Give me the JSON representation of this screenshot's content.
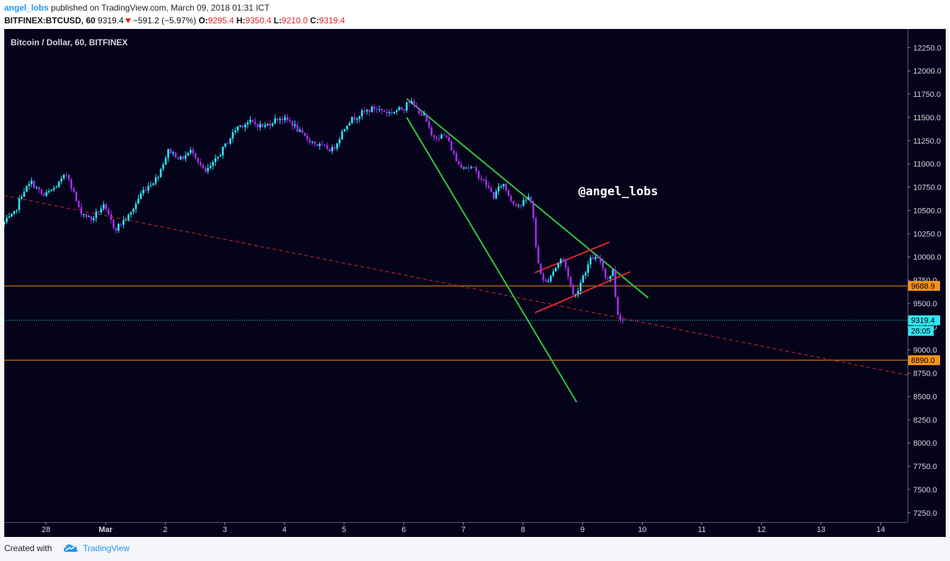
{
  "header": {
    "author": "angel_lobs",
    "published": "published on TradingView.com, March 09, 2018 01:31 ICT",
    "symbol": "BITFINEX:BTCUSD, 60",
    "last": "9319.4",
    "change": "−591.2 (−5.97%)",
    "o_label": "O:",
    "o_value": "9295.4",
    "h_label": "H:",
    "h_value": "9350.4",
    "l_label": "L:",
    "l_value": "9210.0",
    "c_label": "C:",
    "c_value": "9319.4"
  },
  "footer": {
    "created_with": "Created with",
    "brand": "TradingView"
  },
  "colors": {
    "bg": "#05031a",
    "up": "#2ee8f5",
    "down": "#a230e8",
    "green_line": "#2ecc40",
    "red_line": "#e02828",
    "orange": "#f7931a",
    "axis_text": "#d8d8e0"
  },
  "chart_data": {
    "type": "candlestick",
    "title": "Bitcoin / Dollar, 60, BITFINEX",
    "watermark": "@angel_lobs",
    "y_ticks": [
      7250,
      7500,
      7750,
      8000,
      8250,
      8500,
      8750,
      9000,
      9250,
      9500,
      9750,
      10000,
      10250,
      10500,
      10750,
      11000,
      11250,
      11500,
      11750,
      12000,
      12250
    ],
    "y_tick_labels": [
      "7250.0",
      "7500.0",
      "7750.0",
      "8000.0",
      "8250.0",
      "8500.0",
      "8750.0",
      "9000.0",
      "9250.0",
      "9500.0",
      "9750.0",
      "10000.0",
      "10250.0",
      "10500.0",
      "10750.0",
      "11000.0",
      "11250.0",
      "11500.0",
      "11750.0",
      "12000.0",
      "12250.0"
    ],
    "ylim": [
      7150,
      12450
    ],
    "x_ticks": [
      {
        "label": "28",
        "day": 0
      },
      {
        "label": "Mar",
        "day": 1
      },
      {
        "label": "2",
        "day": 2
      },
      {
        "label": "3",
        "day": 3
      },
      {
        "label": "4",
        "day": 4
      },
      {
        "label": "5",
        "day": 5
      },
      {
        "label": "6",
        "day": 6
      },
      {
        "label": "7",
        "day": 7
      },
      {
        "label": "8",
        "day": 8
      },
      {
        "label": "9",
        "day": 9
      },
      {
        "label": "10",
        "day": 10
      },
      {
        "label": "11",
        "day": 11
      },
      {
        "label": "12",
        "day": 12
      },
      {
        "label": "13",
        "day": 13
      },
      {
        "label": "14",
        "day": 14
      }
    ],
    "xlim": [
      -0.7,
      14.45
    ],
    "price_path": [
      [
        -0.7,
        10350
      ],
      [
        -0.5,
        10450
      ],
      [
        -0.35,
        10700
      ],
      [
        -0.2,
        10800
      ],
      [
        0.0,
        10650
      ],
      [
        0.2,
        10750
      ],
      [
        0.4,
        10900
      ],
      [
        0.6,
        10500
      ],
      [
        0.8,
        10400
      ],
      [
        1.0,
        10550
      ],
      [
        1.2,
        10300
      ],
      [
        1.45,
        10450
      ],
      [
        1.65,
        10700
      ],
      [
        1.9,
        10850
      ],
      [
        2.1,
        11150
      ],
      [
        2.3,
        11050
      ],
      [
        2.5,
        11150
      ],
      [
        2.7,
        10900
      ],
      [
        2.85,
        11000
      ],
      [
        3.05,
        11200
      ],
      [
        3.25,
        11400
      ],
      [
        3.45,
        11450
      ],
      [
        3.7,
        11400
      ],
      [
        3.95,
        11500
      ],
      [
        4.15,
        11450
      ],
      [
        4.35,
        11300
      ],
      [
        4.6,
        11200
      ],
      [
        4.85,
        11150
      ],
      [
        5.1,
        11450
      ],
      [
        5.35,
        11550
      ],
      [
        5.55,
        11600
      ],
      [
        5.8,
        11550
      ],
      [
        6.05,
        11600
      ],
      [
        6.1,
        11700
      ],
      [
        6.25,
        11600
      ],
      [
        6.4,
        11500
      ],
      [
        6.5,
        11300
      ],
      [
        6.75,
        11300
      ],
      [
        6.95,
        11000
      ],
      [
        7.2,
        10950
      ],
      [
        7.4,
        10800
      ],
      [
        7.55,
        10650
      ],
      [
        7.7,
        10800
      ],
      [
        7.85,
        10600
      ],
      [
        8.0,
        10550
      ],
      [
        8.15,
        10650
      ],
      [
        8.2,
        10550
      ],
      [
        8.27,
        10000
      ],
      [
        8.4,
        9700
      ],
      [
        8.55,
        9850
      ],
      [
        8.7,
        10000
      ],
      [
        8.8,
        9800
      ],
      [
        8.9,
        9550
      ],
      [
        9.05,
        9800
      ],
      [
        9.2,
        10000
      ],
      [
        9.35,
        9950
      ],
      [
        9.45,
        9750
      ],
      [
        9.55,
        9850
      ],
      [
        9.62,
        9400
      ],
      [
        9.7,
        9319.4
      ]
    ],
    "last_price": 9319.4,
    "last_price_label": "9319.4",
    "countdown_label": "28:05",
    "levels": [
      {
        "value": 9688.9,
        "label": "9688.9"
      },
      {
        "value": 8890.0,
        "label": "8890.0"
      }
    ],
    "trendlines": [
      {
        "kind": "green-upper",
        "from": [
          6.05,
          11700
        ],
        "to": [
          10.1,
          9560
        ]
      },
      {
        "kind": "green-lower",
        "from": [
          6.05,
          11500
        ],
        "to": [
          8.9,
          8440
        ]
      },
      {
        "kind": "red-channel-top",
        "from": [
          8.2,
          9830
        ],
        "to": [
          9.45,
          10160
        ]
      },
      {
        "kind": "red-channel-bottom",
        "from": [
          8.2,
          9400
        ],
        "to": [
          9.8,
          9840
        ]
      },
      {
        "kind": "red-dashed",
        "from": [
          -0.7,
          10660
        ],
        "to": [
          14.45,
          8730
        ]
      }
    ]
  }
}
